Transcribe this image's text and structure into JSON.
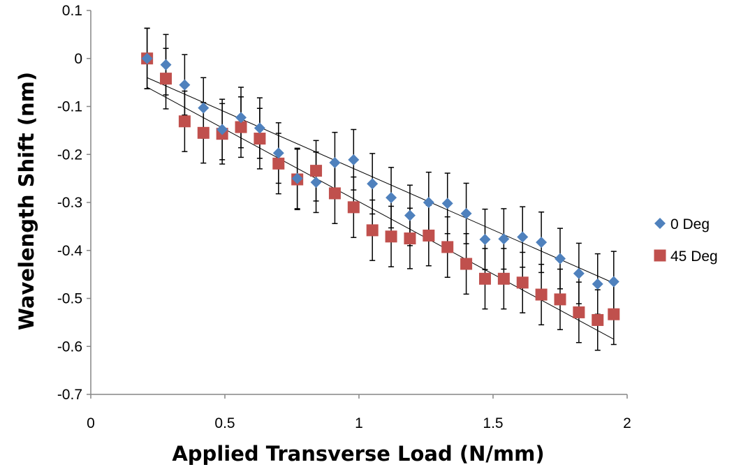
{
  "chart_data": {
    "type": "scatter",
    "title": "",
    "xlabel": "Applied Transverse Load (N/mm)",
    "ylabel": "Wavelength Shift (nm)",
    "xlim": [
      0,
      2
    ],
    "ylim": [
      -0.7,
      0.1
    ],
    "x_ticks": [
      "0",
      "0.5",
      "1",
      "1.5",
      "2"
    ],
    "y_ticks": [
      "0.1",
      "0",
      "-0.1",
      "-0.2",
      "-0.3",
      "-0.4",
      "-0.5",
      "-0.6",
      "-0.7"
    ],
    "grid": false,
    "legend_position": "right",
    "error_bar": 0.063,
    "series": [
      {
        "name": "0 Deg",
        "marker": "diamond",
        "color": "#4f81bd",
        "x": [
          0.21,
          0.28,
          0.35,
          0.42,
          0.49,
          0.56,
          0.63,
          0.7,
          0.77,
          0.84,
          0.91,
          0.98,
          1.05,
          1.12,
          1.19,
          1.26,
          1.33,
          1.4,
          1.47,
          1.54,
          1.61,
          1.68,
          1.75,
          1.82,
          1.89,
          1.95
        ],
        "y": [
          0.0,
          -0.013,
          -0.055,
          -0.103,
          -0.148,
          -0.123,
          -0.145,
          -0.197,
          -0.25,
          -0.258,
          -0.217,
          -0.211,
          -0.261,
          -0.29,
          -0.327,
          -0.3,
          -0.302,
          -0.323,
          -0.377,
          -0.376,
          -0.372,
          -0.383,
          -0.417,
          -0.448,
          -0.47,
          -0.465
        ],
        "trendline": [
          [
            0.21,
            -0.04
          ],
          [
            1.95,
            -0.468
          ]
        ]
      },
      {
        "name": "45 Deg",
        "marker": "square",
        "color": "#c0504d",
        "x": [
          0.21,
          0.28,
          0.35,
          0.42,
          0.49,
          0.56,
          0.63,
          0.7,
          0.77,
          0.84,
          0.91,
          0.98,
          1.05,
          1.12,
          1.19,
          1.26,
          1.33,
          1.4,
          1.47,
          1.54,
          1.61,
          1.68,
          1.75,
          1.82,
          1.89,
          1.95
        ],
        "y": [
          0.0,
          -0.042,
          -0.131,
          -0.155,
          -0.157,
          -0.143,
          -0.167,
          -0.219,
          -0.252,
          -0.234,
          -0.281,
          -0.31,
          -0.358,
          -0.371,
          -0.375,
          -0.369,
          -0.393,
          -0.428,
          -0.459,
          -0.459,
          -0.467,
          -0.492,
          -0.502,
          -0.529,
          -0.545,
          -0.533
        ],
        "trendline": [
          [
            0.21,
            -0.06
          ],
          [
            1.95,
            -0.585
          ]
        ]
      }
    ]
  }
}
